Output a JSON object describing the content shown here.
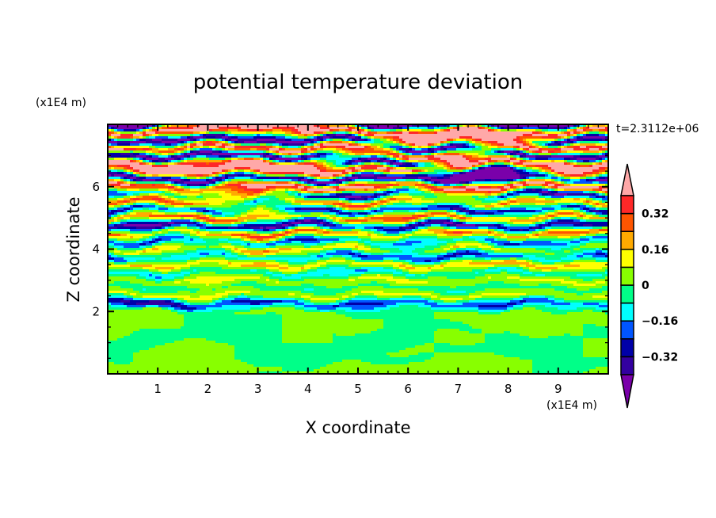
{
  "chart_data": {
    "type": "heatmap",
    "title": "potential temperature deviation",
    "xlabel": "X coordinate",
    "ylabel": "Z coordinate",
    "x_unit": "(x1E4 m)",
    "y_unit": "(x1E4 m)",
    "time_label": "t=2.3112e+06",
    "xlim": [
      0,
      10
    ],
    "ylim": [
      0,
      8
    ],
    "x_ticks": [
      "1",
      "2",
      "3",
      "4",
      "5",
      "6",
      "7",
      "8",
      "9"
    ],
    "y_ticks": [
      "2",
      "4",
      "6"
    ],
    "colorbar": {
      "levels": [
        -0.4,
        -0.32,
        -0.24,
        -0.16,
        -0.08,
        0,
        0.08,
        0.16,
        0.24,
        0.32,
        0.4
      ],
      "labels": [
        {
          "value": 0.32,
          "text": "0.32"
        },
        {
          "value": 0.16,
          "text": "0.16"
        },
        {
          "value": 0,
          "text": "0"
        },
        {
          "value": -0.16,
          "text": "−0.16"
        },
        {
          "value": -0.32,
          "text": "−0.32"
        }
      ],
      "colors": [
        "#7a00aa",
        "#3300a0",
        "#0000a8",
        "#0055ff",
        "#00ffff",
        "#00ff88",
        "#88ff00",
        "#ffff00",
        "#ffaa00",
        "#ff5500",
        "#ff2828",
        "#ffa8a8"
      ],
      "extend": "both"
    },
    "grid_x": [
      0,
      1,
      2,
      3,
      4,
      5,
      6,
      7,
      8,
      9,
      10
    ],
    "grid_z_top_to_bottom": [
      8,
      7.75,
      7.5,
      7.25,
      7,
      6.75,
      6.5,
      6.25,
      6,
      5.75,
      5.5,
      5.25,
      5,
      4.75,
      4.5,
      4.25,
      4,
      3.75,
      3.5,
      3.25,
      3,
      2.75,
      2.5,
      2.25,
      2,
      1.75,
      1.5,
      1.25,
      1,
      0.75,
      0.5,
      0.25,
      0
    ],
    "values": [
      [
        -0.5,
        -0.5,
        0.5,
        0.5,
        0.5,
        -0.5,
        -0.5,
        -0.5,
        -0.5,
        -0.5,
        -0.5
      ],
      [
        0.5,
        0.5,
        0.5,
        -0.2,
        0.5,
        0.5,
        0.5,
        0.5,
        0.5,
        0.5,
        0.5
      ],
      [
        -0.5,
        -0.5,
        -0.5,
        -0.5,
        -0.5,
        -0.5,
        0.5,
        0.5,
        0.5,
        -0.5,
        -0.5
      ],
      [
        0.5,
        0.3,
        0.5,
        0.5,
        0.5,
        0.5,
        -0.5,
        -0.5,
        0.5,
        0.5,
        0.5
      ],
      [
        -0.5,
        -0.5,
        -0.5,
        -0.5,
        -0.5,
        0.2,
        0.5,
        0.5,
        -0.5,
        -0.5,
        -0.5
      ],
      [
        0.5,
        0.5,
        0.3,
        0.5,
        0.5,
        -0.5,
        -0.5,
        0.5,
        0.5,
        0.5,
        0.5
      ],
      [
        0.2,
        0.5,
        0.5,
        0.5,
        0.5,
        0.5,
        0.5,
        -0.5,
        -0.5,
        0.5,
        0.2
      ],
      [
        -0.5,
        -0.5,
        -0.5,
        -0.3,
        -0.5,
        -0.5,
        -0.5,
        -0.5,
        -0.5,
        -0.2,
        -0.5
      ],
      [
        0.5,
        0.4,
        0.2,
        0.5,
        0.5,
        0.5,
        0.3,
        0.5,
        0.5,
        0.5,
        0.5
      ],
      [
        -0.3,
        -0.1,
        0.0,
        0.3,
        -0.3,
        -0.5,
        -0.2,
        0.1,
        -0.3,
        -0.5,
        -0.3
      ],
      [
        0.3,
        0.4,
        0.2,
        -0.2,
        0.3,
        0.4,
        0.2,
        0.0,
        0.3,
        0.2,
        0.3
      ],
      [
        -0.4,
        -0.2,
        -0.3,
        0.1,
        -0.4,
        -0.3,
        -0.2,
        -0.4,
        -0.3,
        -0.2,
        -0.4
      ],
      [
        0.2,
        0.3,
        0.4,
        0.2,
        0.1,
        0.3,
        0.4,
        0.3,
        0.2,
        0.3,
        0.2
      ],
      [
        -0.4,
        -0.5,
        -0.3,
        -0.4,
        -0.5,
        -0.2,
        -0.4,
        -0.5,
        -0.3,
        -0.4,
        -0.4
      ],
      [
        0.3,
        0.1,
        0.2,
        0.4,
        0.3,
        0.2,
        0.1,
        0.35,
        0.2,
        0.3,
        0.3
      ],
      [
        -0.2,
        -0.3,
        -0.1,
        -0.2,
        -0.3,
        -0.1,
        -0.2,
        -0.1,
        -0.3,
        -0.2,
        -0.2
      ],
      [
        0.1,
        0.2,
        0.0,
        0.3,
        0.1,
        0.2,
        -0.1,
        0.2,
        0.1,
        0.0,
        0.1
      ],
      [
        -0.3,
        -0.1,
        -0.2,
        -0.1,
        -0.15,
        -0.3,
        -0.2,
        -0.35,
        -0.2,
        -0.1,
        -0.3
      ],
      [
        0.15,
        0.2,
        0.1,
        0.25,
        0.15,
        0.1,
        0.2,
        0.15,
        0.25,
        0.2,
        0.15
      ],
      [
        -0.1,
        -0.2,
        -0.05,
        -0.1,
        -0.15,
        -0.2,
        -0.1,
        -0.05,
        -0.15,
        -0.1,
        -0.1
      ],
      [
        0.1,
        0.05,
        0.15,
        0.1,
        0.05,
        0.1,
        0.15,
        0.05,
        0.1,
        0.12,
        0.1
      ],
      [
        -0.05,
        -0.1,
        0.0,
        -0.05,
        -0.1,
        -0.02,
        -0.05,
        -0.1,
        -0.03,
        -0.05,
        -0.05
      ],
      [
        0.12,
        0.1,
        0.15,
        0.08,
        0.12,
        0.1,
        0.14,
        0.1,
        0.12,
        0.08,
        0.12
      ],
      [
        -0.3,
        -0.45,
        -0.2,
        -0.3,
        -0.2,
        -0.3,
        -0.2,
        -0.25,
        -0.3,
        -0.2,
        -0.2
      ],
      [
        0.04,
        0.04,
        -0.04,
        0.04,
        0.04,
        -0.04,
        -0.04,
        0.04,
        0.04,
        -0.04,
        0.04
      ],
      [
        0.04,
        0.04,
        -0.04,
        -0.04,
        0.04,
        0.04,
        -0.04,
        0.04,
        0.04,
        0.04,
        0.04
      ],
      [
        0.04,
        0.04,
        -0.04,
        -0.04,
        0.04,
        0.04,
        -0.04,
        -0.04,
        0.04,
        0.04,
        -0.04
      ],
      [
        0.04,
        -0.04,
        -0.04,
        -0.04,
        0.04,
        -0.04,
        -0.04,
        0.04,
        -0.04,
        0.04,
        -0.04
      ],
      [
        -0.04,
        -0.04,
        0.04,
        -0.04,
        0.04,
        -0.04,
        -0.04,
        0.04,
        -0.04,
        -0.04,
        0.04
      ],
      [
        -0.04,
        0.04,
        0.04,
        -0.04,
        -0.04,
        -0.04,
        0.04,
        -0.04,
        -0.04,
        -0.04,
        0.04
      ],
      [
        -0.04,
        0.04,
        0.04,
        -0.04,
        -0.04,
        -0.04,
        -0.04,
        0.04,
        0.04,
        -0.04,
        0.04
      ],
      [
        0.04,
        0.04,
        0.04,
        0.04,
        -0.04,
        0.04,
        0.04,
        0.04,
        0.04,
        -0.04,
        -0.04
      ],
      [
        0.04,
        0.04,
        0.04,
        -0.04,
        0.04,
        0.04,
        0.04,
        0.04,
        0.04,
        -0.04,
        0.04
      ]
    ]
  }
}
